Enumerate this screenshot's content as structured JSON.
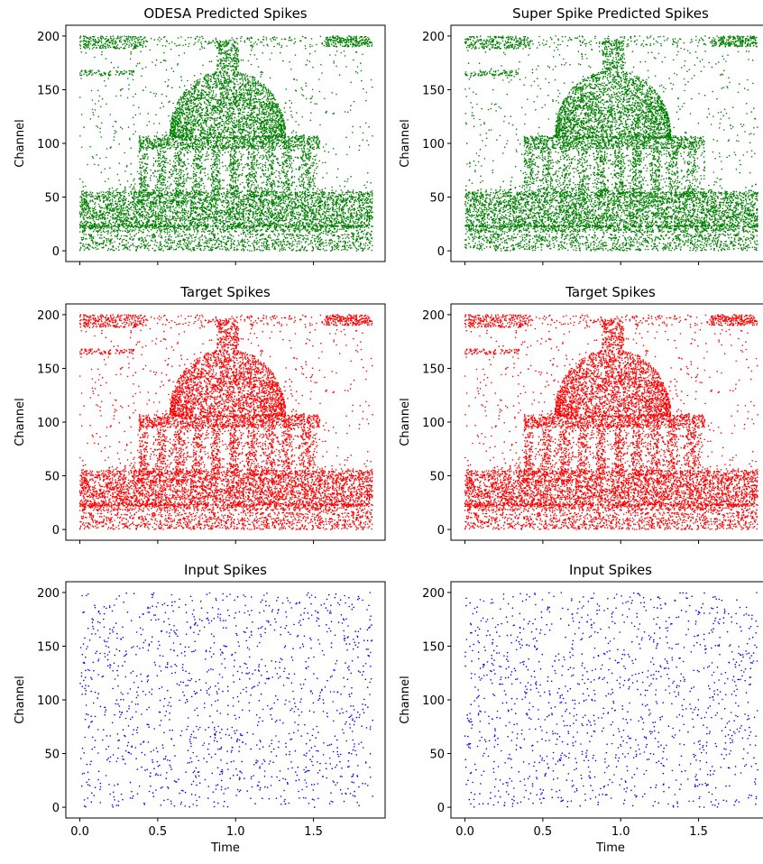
{
  "figure": {
    "xlabel": "Time",
    "ylabel": "Channel"
  },
  "chart_data": [
    {
      "type": "scatter",
      "title": "ODESA Predicted Spikes",
      "xlabel": "",
      "ylabel": "Channel",
      "xlim": [
        -0.09,
        1.96
      ],
      "ylim": [
        -10,
        210
      ],
      "xticks": [
        0.0,
        0.5,
        1.0,
        1.5
      ],
      "xtick_labels_shown": false,
      "yticks": [
        0,
        50,
        100,
        150,
        200
      ],
      "color": "#008000",
      "pattern": "spike raster of domed rotunda building (Radcliffe Camera) above a dense band of channels 0-60",
      "points_sample": [
        [
          0.05,
          198
        ],
        [
          0.3,
          196
        ],
        [
          1.85,
          196
        ],
        [
          0.95,
          185
        ],
        [
          0.8,
          160
        ],
        [
          1.1,
          160
        ],
        [
          0.5,
          120
        ],
        [
          1.5,
          120
        ],
        [
          0.4,
          100
        ],
        [
          1.55,
          100
        ],
        [
          0.3,
          50
        ],
        [
          1.2,
          40
        ],
        [
          0.1,
          20
        ],
        [
          0.9,
          10
        ],
        [
          1.7,
          3
        ]
      ],
      "grid": false
    },
    {
      "type": "scatter",
      "title": "Super Spike Predicted Spikes",
      "xlabel": "",
      "ylabel": "Channel",
      "xlim": [
        -0.09,
        1.96
      ],
      "ylim": [
        -10,
        210
      ],
      "xticks": [
        0.0,
        0.5,
        1.0,
        1.5
      ],
      "xtick_labels_shown": false,
      "yticks": [
        0,
        50,
        100,
        150,
        200
      ],
      "color": "#008000",
      "pattern": "spike raster of domed rotunda building (Radcliffe Camera) above a dense band of channels 0-60",
      "points_sample": [
        [
          0.05,
          198
        ],
        [
          0.3,
          196
        ],
        [
          1.85,
          196
        ],
        [
          0.95,
          185
        ],
        [
          0.8,
          160
        ],
        [
          1.1,
          160
        ],
        [
          0.5,
          120
        ],
        [
          1.5,
          120
        ],
        [
          0.4,
          100
        ],
        [
          1.55,
          100
        ],
        [
          0.3,
          50
        ],
        [
          1.2,
          40
        ],
        [
          0.1,
          20
        ],
        [
          0.9,
          10
        ],
        [
          1.7,
          3
        ]
      ],
      "grid": false
    },
    {
      "type": "scatter",
      "title": "Target Spikes",
      "xlabel": "",
      "ylabel": "Channel",
      "xlim": [
        -0.09,
        1.96
      ],
      "ylim": [
        -10,
        210
      ],
      "xticks": [
        0.0,
        0.5,
        1.0,
        1.5
      ],
      "xtick_labels_shown": false,
      "yticks": [
        0,
        50,
        100,
        150,
        200
      ],
      "color": "#ff0000",
      "pattern": "spike raster of domed rotunda building (Radcliffe Camera) above a dense band of channels 0-60",
      "points_sample": [
        [
          0.05,
          198
        ],
        [
          0.3,
          196
        ],
        [
          1.85,
          196
        ],
        [
          0.95,
          185
        ],
        [
          0.8,
          160
        ],
        [
          1.1,
          160
        ],
        [
          0.5,
          120
        ],
        [
          1.5,
          120
        ],
        [
          0.4,
          100
        ],
        [
          1.55,
          100
        ],
        [
          0.3,
          50
        ],
        [
          1.2,
          40
        ],
        [
          0.1,
          20
        ],
        [
          0.9,
          10
        ],
        [
          1.7,
          3
        ]
      ],
      "grid": false
    },
    {
      "type": "scatter",
      "title": "Target Spikes",
      "xlabel": "",
      "ylabel": "Channel",
      "xlim": [
        -0.09,
        1.96
      ],
      "ylim": [
        -10,
        210
      ],
      "xticks": [
        0.0,
        0.5,
        1.0,
        1.5
      ],
      "xtick_labels_shown": false,
      "yticks": [
        0,
        50,
        100,
        150,
        200
      ],
      "color": "#ff0000",
      "pattern": "spike raster of domed rotunda building (Radcliffe Camera) above a dense band of channels 0-60",
      "points_sample": [
        [
          0.05,
          198
        ],
        [
          0.3,
          196
        ],
        [
          1.85,
          196
        ],
        [
          0.95,
          185
        ],
        [
          0.8,
          160
        ],
        [
          1.1,
          160
        ],
        [
          0.5,
          120
        ],
        [
          1.5,
          120
        ],
        [
          0.4,
          100
        ],
        [
          1.55,
          100
        ],
        [
          0.3,
          50
        ],
        [
          1.2,
          40
        ],
        [
          0.1,
          20
        ],
        [
          0.9,
          10
        ],
        [
          1.7,
          3
        ]
      ],
      "grid": false
    },
    {
      "type": "scatter",
      "title": "Input Spikes",
      "xlabel": "Time",
      "ylabel": "Channel",
      "xlim": [
        -0.09,
        1.96
      ],
      "ylim": [
        -10,
        210
      ],
      "xticks": [
        0.0,
        0.5,
        1.0,
        1.5
      ],
      "xtick_labels_shown": true,
      "xtick_labels": [
        "0.0",
        "0.5",
        "1.0",
        "1.5"
      ],
      "yticks": [
        0,
        50,
        100,
        150,
        200
      ],
      "color": "#0000ff",
      "pattern": "uniformly random sparse spikes across channels 0-200 and time 0-1.9",
      "points_sample": [
        [
          0.02,
          2
        ],
        [
          0.05,
          110
        ],
        [
          0.1,
          200
        ],
        [
          0.3,
          150
        ],
        [
          0.5,
          50
        ],
        [
          0.7,
          175
        ],
        [
          0.9,
          90
        ],
        [
          1.1,
          30
        ],
        [
          1.3,
          130
        ],
        [
          1.5,
          70
        ],
        [
          1.7,
          180
        ],
        [
          1.86,
          20
        ]
      ],
      "grid": false
    },
    {
      "type": "scatter",
      "title": "Input Spikes",
      "xlabel": "Time",
      "ylabel": "Channel",
      "xlim": [
        -0.09,
        1.96
      ],
      "ylim": [
        -10,
        210
      ],
      "xticks": [
        0.0,
        0.5,
        1.0,
        1.5
      ],
      "xtick_labels_shown": true,
      "xtick_labels": [
        "0.0",
        "0.5",
        "1.0",
        "1.5"
      ],
      "yticks": [
        0,
        50,
        100,
        150,
        200
      ],
      "color": "#0000ff",
      "pattern": "uniformly random sparse spikes across channels 0-200 and time 0-1.9",
      "points_sample": [
        [
          0.02,
          2
        ],
        [
          0.05,
          110
        ],
        [
          0.1,
          200
        ],
        [
          0.3,
          150
        ],
        [
          0.5,
          50
        ],
        [
          0.7,
          175
        ],
        [
          0.9,
          90
        ],
        [
          1.1,
          30
        ],
        [
          1.3,
          130
        ],
        [
          1.5,
          70
        ],
        [
          1.7,
          180
        ],
        [
          1.86,
          20
        ]
      ],
      "grid": false
    }
  ]
}
